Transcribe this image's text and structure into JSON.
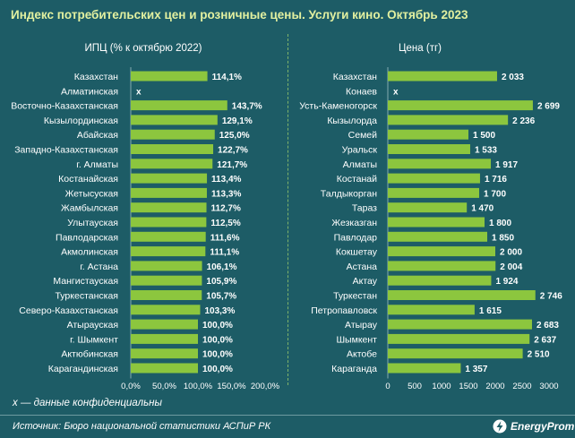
{
  "title": "Индекс потребительских цен и розничные цены. Услуги кино. Октябрь 2023",
  "footnote": "х — данные конфиденциальны",
  "source": "Источник: Бюро национальной статистики АСПиР РК",
  "logo": {
    "text": "EnergyProm"
  },
  "colors": {
    "background": "#1d5c66",
    "bar": "#8cc63e",
    "title": "#e2f0a0",
    "text": "#ffffff",
    "divider": "#7fb36a"
  },
  "chart_data": [
    {
      "type": "bar",
      "orientation": "horizontal",
      "title": "ИПЦ (% к октябрю 2022)",
      "categories": [
        "Казахстан",
        "Алматинская",
        "Восточно-Казахстанская",
        "Кызылординская",
        "Абайская",
        "Западно-Казахстанская",
        "г. Алматы",
        "Костанайская",
        "Жетысуская",
        "Жамбылская",
        "Улытауская",
        "Павлодарская",
        "Акмолинская",
        "г. Астана",
        "Мангистауская",
        "Туркестанская",
        "Северо-Казахстанская",
        "Атырауская",
        "г. Шымкент",
        "Актюбинская",
        "Карагандинская"
      ],
      "values": [
        114.1,
        null,
        143.7,
        129.1,
        125.0,
        122.7,
        121.7,
        113.4,
        113.3,
        112.7,
        112.5,
        111.6,
        111.1,
        106.1,
        105.9,
        105.7,
        103.3,
        100.0,
        100.0,
        100.0,
        100.0
      ],
      "labels": [
        "114,1%",
        "х",
        "143,7%",
        "129,1%",
        "125,0%",
        "122,7%",
        "121,7%",
        "113,4%",
        "113,3%",
        "112,7%",
        "112,5%",
        "111,6%",
        "111,1%",
        "106,1%",
        "105,9%",
        "105,7%",
        "103,3%",
        "100,0%",
        "100,0%",
        "100,0%",
        "100,0%"
      ],
      "xlim": [
        0,
        200
      ],
      "xticks": [
        "0,0%",
        "50,0%",
        "100,0%",
        "150,0%",
        "200,0%"
      ],
      "grid": false
    },
    {
      "type": "bar",
      "orientation": "horizontal",
      "title": "Цена (тг)",
      "categories": [
        "Казахстан",
        "Конаев",
        "Усть-Каменогорск",
        "Кызылорда",
        "Семей",
        "Уральск",
        "Алматы",
        "Костанай",
        "Талдыкорган",
        "Тараз",
        "Жезказган",
        "Павлодар",
        "Кокшетау",
        "Астана",
        "Актау",
        "Туркестан",
        "Петропавловск",
        "Атырау",
        "Шымкент",
        "Актобе",
        "Караганда"
      ],
      "values": [
        2033,
        null,
        2699,
        2236,
        1500,
        1533,
        1917,
        1716,
        1700,
        1470,
        1800,
        1850,
        2000,
        2004,
        1924,
        2746,
        1615,
        2683,
        2637,
        2510,
        1357
      ],
      "labels": [
        "2 033",
        "х",
        "2 699",
        "2 236",
        "1 500",
        "1 533",
        "1 917",
        "1 716",
        "1 700",
        "1 470",
        "1 800",
        "1 850",
        "2 000",
        "2 004",
        "1 924",
        "2 746",
        "1 615",
        "2 683",
        "2 637",
        "2 510",
        "1 357"
      ],
      "xlim": [
        0,
        3000
      ],
      "xticks": [
        "0",
        "500",
        "1000",
        "1500",
        "2000",
        "2500",
        "3000"
      ],
      "grid": false
    }
  ]
}
